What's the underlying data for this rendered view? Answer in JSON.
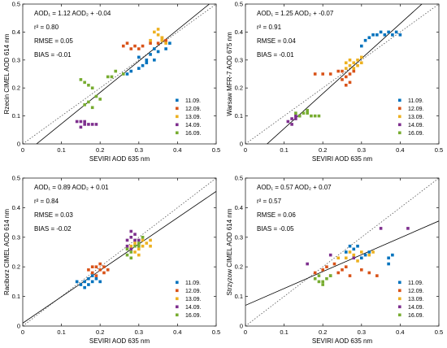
{
  "chart_data": [
    {
      "type": "scatter",
      "xlabel": "SEVIRI AOD 635 nm",
      "ylabel": "Rzecin CIMEL AOD 614 nm",
      "xlim": [
        0,
        0.5
      ],
      "ylim": [
        0,
        0.5
      ],
      "ticks": [
        "0",
        "0.1",
        "0.2",
        "0.3",
        "0.4",
        "0.5"
      ],
      "annotations": {
        "eq": "AOD₁ = 1.12  AOD₂ + -0.04",
        "r2": "r²  = 0.80",
        "rmse": "RMSE  = 0.05",
        "bias": "BIAS  = -0.01"
      },
      "fit": {
        "slope": 1.12,
        "intercept": -0.04
      },
      "legend_position": "bottom-right",
      "series": [
        {
          "name": "11.09.",
          "color": "#0072BD",
          "points": [
            [
              0.27,
              0.25
            ],
            [
              0.28,
              0.26
            ],
            [
              0.3,
              0.27
            ],
            [
              0.31,
              0.28
            ],
            [
              0.32,
              0.3
            ],
            [
              0.33,
              0.32
            ],
            [
              0.34,
              0.34
            ],
            [
              0.35,
              0.33
            ],
            [
              0.37,
              0.34
            ],
            [
              0.38,
              0.36
            ],
            [
              0.3,
              0.31
            ],
            [
              0.32,
              0.29
            ],
            [
              0.34,
              0.3
            ]
          ]
        },
        {
          "name": "12.09.",
          "color": "#D95319",
          "points": [
            [
              0.26,
              0.35
            ],
            [
              0.27,
              0.36
            ],
            [
              0.29,
              0.35
            ],
            [
              0.3,
              0.34
            ],
            [
              0.31,
              0.35
            ],
            [
              0.33,
              0.36
            ],
            [
              0.35,
              0.36
            ],
            [
              0.36,
              0.37
            ],
            [
              0.36,
              0.38
            ],
            [
              0.37,
              0.37
            ],
            [
              0.28,
              0.34
            ]
          ]
        },
        {
          "name": "13.09.",
          "color": "#EDB120",
          "points": [
            [
              0.34,
              0.4
            ],
            [
              0.35,
              0.41
            ],
            [
              0.35,
              0.39
            ],
            [
              0.36,
              0.37
            ],
            [
              0.36,
              0.38
            ],
            [
              0.37,
              0.36
            ],
            [
              0.33,
              0.37
            ]
          ]
        },
        {
          "name": "14.09.",
          "color": "#7E2F8E",
          "points": [
            [
              0.14,
              0.08
            ],
            [
              0.15,
              0.08
            ],
            [
              0.16,
              0.07
            ],
            [
              0.17,
              0.07
            ],
            [
              0.18,
              0.07
            ],
            [
              0.15,
              0.06
            ],
            [
              0.16,
              0.08
            ],
            [
              0.19,
              0.07
            ]
          ]
        },
        {
          "name": "16.09.",
          "color": "#77AC30",
          "points": [
            [
              0.15,
              0.23
            ],
            [
              0.16,
              0.22
            ],
            [
              0.17,
              0.21
            ],
            [
              0.18,
              0.2
            ],
            [
              0.19,
              0.17
            ],
            [
              0.2,
              0.16
            ],
            [
              0.22,
              0.24
            ],
            [
              0.23,
              0.24
            ],
            [
              0.16,
              0.14
            ],
            [
              0.17,
              0.15
            ],
            [
              0.18,
              0.13
            ],
            [
              0.24,
              0.26
            ],
            [
              0.26,
              0.25
            ]
          ]
        }
      ]
    },
    {
      "type": "scatter",
      "xlabel": "SEVIRI AOD 635 nm",
      "ylabel": "Warsaw MFR-7 AOD 675 nm",
      "xlim": [
        0,
        0.5
      ],
      "ylim": [
        0,
        0.5
      ],
      "ticks": [
        "0",
        "0.1",
        "0.2",
        "0.3",
        "0.4",
        "0.5"
      ],
      "annotations": {
        "eq": "AOD₁ = 1.25  AOD₂ + -0.07",
        "r2": "r²  = 0.91",
        "rmse": "RMSE  = 0.04",
        "bias": "BIAS  = -0.01"
      },
      "fit": {
        "slope": 1.25,
        "intercept": -0.07
      },
      "legend_position": "bottom-right",
      "series": [
        {
          "name": "11.09.",
          "color": "#0072BD",
          "points": [
            [
              0.31,
              0.37
            ],
            [
              0.32,
              0.38
            ],
            [
              0.33,
              0.39
            ],
            [
              0.34,
              0.39
            ],
            [
              0.35,
              0.4
            ],
            [
              0.36,
              0.39
            ],
            [
              0.37,
              0.4
            ],
            [
              0.38,
              0.39
            ],
            [
              0.39,
              0.4
            ],
            [
              0.4,
              0.39
            ],
            [
              0.3,
              0.35
            ]
          ]
        },
        {
          "name": "12.09.",
          "color": "#D95319",
          "points": [
            [
              0.18,
              0.25
            ],
            [
              0.2,
              0.25
            ],
            [
              0.22,
              0.25
            ],
            [
              0.24,
              0.26
            ],
            [
              0.25,
              0.23
            ],
            [
              0.26,
              0.24
            ],
            [
              0.26,
              0.21
            ],
            [
              0.27,
              0.22
            ],
            [
              0.28,
              0.26
            ],
            [
              0.27,
              0.25
            ],
            [
              0.25,
              0.26
            ]
          ]
        },
        {
          "name": "13.09.",
          "color": "#EDB120",
          "points": [
            [
              0.26,
              0.27
            ],
            [
              0.27,
              0.28
            ],
            [
              0.28,
              0.29
            ],
            [
              0.29,
              0.3
            ],
            [
              0.3,
              0.29
            ],
            [
              0.27,
              0.3
            ],
            [
              0.28,
              0.27
            ],
            [
              0.29,
              0.28
            ],
            [
              0.26,
              0.29
            ],
            [
              0.3,
              0.31
            ]
          ]
        },
        {
          "name": "14.09.",
          "color": "#7E2F8E",
          "points": [
            [
              0.11,
              0.08
            ],
            [
              0.12,
              0.09
            ],
            [
              0.13,
              0.09
            ],
            [
              0.14,
              0.1
            ],
            [
              0.12,
              0.07
            ],
            [
              0.13,
              0.1
            ]
          ]
        },
        {
          "name": "16.09.",
          "color": "#77AC30",
          "points": [
            [
              0.14,
              0.1
            ],
            [
              0.15,
              0.11
            ],
            [
              0.16,
              0.11
            ],
            [
              0.17,
              0.1
            ],
            [
              0.18,
              0.1
            ],
            [
              0.19,
              0.1
            ],
            [
              0.16,
              0.12
            ],
            [
              0.13,
              0.11
            ]
          ]
        }
      ]
    },
    {
      "type": "scatter",
      "xlabel": "SEVIRI AOD 635 nm",
      "ylabel": "Raciborz CIMEL AOD 614 nm",
      "xlim": [
        0,
        0.5
      ],
      "ylim": [
        0,
        0.5
      ],
      "ticks": [
        "0",
        "0.1",
        "0.2",
        "0.3",
        "0.4",
        "0.5"
      ],
      "annotations": {
        "eq": "AOD₁ = 0.89  AOD₂ + 0.01",
        "r2": "r²  = 0.84",
        "rmse": "RMSE  = 0.03",
        "bias": "BIAS  = -0.02"
      },
      "fit": {
        "slope": 0.89,
        "intercept": 0.01
      },
      "legend_position": "bottom-right",
      "series": [
        {
          "name": "11.09.",
          "color": "#0072BD",
          "points": [
            [
              0.14,
              0.15
            ],
            [
              0.15,
              0.14
            ],
            [
              0.16,
              0.15
            ],
            [
              0.17,
              0.14
            ],
            [
              0.17,
              0.16
            ],
            [
              0.18,
              0.15
            ],
            [
              0.19,
              0.16
            ],
            [
              0.16,
              0.13
            ],
            [
              0.18,
              0.17
            ],
            [
              0.2,
              0.15
            ]
          ]
        },
        {
          "name": "12.09.",
          "color": "#D95319",
          "points": [
            [
              0.17,
              0.19
            ],
            [
              0.18,
              0.18
            ],
            [
              0.19,
              0.2
            ],
            [
              0.2,
              0.19
            ],
            [
              0.2,
              0.21
            ],
            [
              0.21,
              0.2
            ],
            [
              0.22,
              0.19
            ],
            [
              0.19,
              0.17
            ],
            [
              0.21,
              0.18
            ],
            [
              0.18,
              0.2
            ]
          ]
        },
        {
          "name": "13.09.",
          "color": "#EDB120",
          "points": [
            [
              0.28,
              0.27
            ],
            [
              0.29,
              0.28
            ],
            [
              0.3,
              0.26
            ],
            [
              0.31,
              0.27
            ],
            [
              0.32,
              0.28
            ],
            [
              0.33,
              0.27
            ],
            [
              0.3,
              0.24
            ],
            [
              0.29,
              0.25
            ],
            [
              0.31,
              0.29
            ],
            [
              0.33,
              0.29
            ]
          ]
        },
        {
          "name": "14.09.",
          "color": "#7E2F8E",
          "points": [
            [
              0.27,
              0.27
            ],
            [
              0.28,
              0.3
            ],
            [
              0.28,
              0.32
            ],
            [
              0.29,
              0.31
            ],
            [
              0.3,
              0.29
            ],
            [
              0.28,
              0.26
            ],
            [
              0.27,
              0.29
            ],
            [
              0.29,
              0.29
            ]
          ]
        },
        {
          "name": "16.09.",
          "color": "#77AC30",
          "points": [
            [
              0.27,
              0.24
            ],
            [
              0.28,
              0.25
            ],
            [
              0.28,
              0.23
            ],
            [
              0.3,
              0.27
            ],
            [
              0.29,
              0.27
            ],
            [
              0.27,
              0.26
            ],
            [
              0.3,
              0.28
            ],
            [
              0.31,
              0.3
            ]
          ]
        }
      ]
    },
    {
      "type": "scatter",
      "xlabel": "SEVIRI AOD 635 nm",
      "ylabel": "Strzyzow CIMEL AOD 614 nm",
      "xlim": [
        0,
        0.5
      ],
      "ylim": [
        0,
        0.5
      ],
      "ticks": [
        "0",
        "0.1",
        "0.2",
        "0.3",
        "0.4",
        "0.5"
      ],
      "annotations": {
        "eq": "AOD₁ = 0.57  AOD₂ + 0.07",
        "r2": "r²  = 0.57",
        "rmse": "RMSE  = 0.06",
        "bias": "BIAS  = -0.05"
      },
      "fit": {
        "slope": 0.57,
        "intercept": 0.07
      },
      "legend_position": "bottom-right",
      "series": [
        {
          "name": "11.09.",
          "color": "#0072BD",
          "points": [
            [
              0.26,
              0.25
            ],
            [
              0.27,
              0.27
            ],
            [
              0.28,
              0.26
            ],
            [
              0.29,
              0.27
            ],
            [
              0.31,
              0.24
            ],
            [
              0.32,
              0.25
            ],
            [
              0.37,
              0.23
            ],
            [
              0.38,
              0.24
            ],
            [
              0.37,
              0.21
            ],
            [
              0.3,
              0.23
            ]
          ]
        },
        {
          "name": "12.09.",
          "color": "#D95319",
          "points": [
            [
              0.18,
              0.18
            ],
            [
              0.2,
              0.19
            ],
            [
              0.21,
              0.2
            ],
            [
              0.22,
              0.17
            ],
            [
              0.24,
              0.18
            ],
            [
              0.26,
              0.2
            ],
            [
              0.27,
              0.17
            ],
            [
              0.3,
              0.19
            ],
            [
              0.32,
              0.18
            ],
            [
              0.34,
              0.17
            ],
            [
              0.23,
              0.21
            ],
            [
              0.25,
              0.19
            ]
          ]
        },
        {
          "name": "13.09.",
          "color": "#EDB120",
          "points": [
            [
              0.24,
              0.23
            ],
            [
              0.26,
              0.23
            ],
            [
              0.28,
              0.24
            ],
            [
              0.3,
              0.25
            ],
            [
              0.32,
              0.24
            ],
            [
              0.33,
              0.25
            ],
            [
              0.27,
              0.25
            ],
            [
              0.29,
              0.22
            ]
          ]
        },
        {
          "name": "14.09.",
          "color": "#7E2F8E",
          "points": [
            [
              0.16,
              0.21
            ],
            [
              0.22,
              0.24
            ],
            [
              0.28,
              0.23
            ],
            [
              0.35,
              0.33
            ],
            [
              0.42,
              0.33
            ]
          ]
        },
        {
          "name": "16.09.",
          "color": "#77AC30",
          "points": [
            [
              0.18,
              0.16
            ],
            [
              0.19,
              0.15
            ],
            [
              0.2,
              0.14
            ],
            [
              0.21,
              0.16
            ],
            [
              0.22,
              0.17
            ],
            [
              0.2,
              0.15
            ],
            [
              0.19,
              0.17
            ]
          ]
        }
      ]
    }
  ]
}
